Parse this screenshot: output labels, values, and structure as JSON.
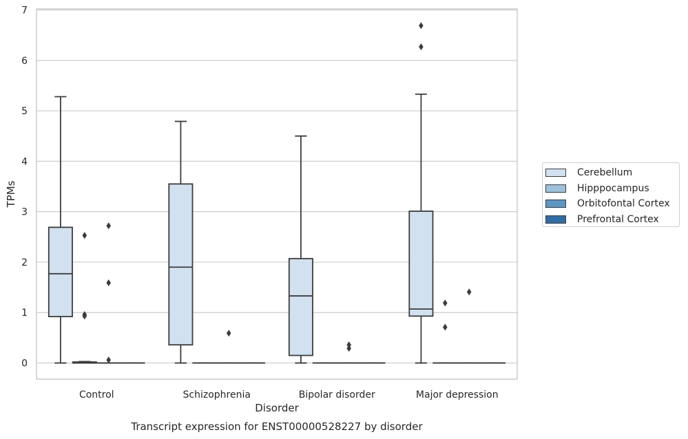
{
  "chart_data": {
    "type": "box",
    "xlabel": "Disorder",
    "ylabel": "TPMs",
    "ylim": [
      -0.32,
      7.02
    ],
    "yticks": [
      0,
      1,
      2,
      3,
      4,
      5,
      6,
      7
    ],
    "grid": true,
    "legend_position": "right",
    "categories": [
      "Control",
      "Schizophrenia",
      "Bipolar disorder",
      "Major depression"
    ],
    "series": [
      {
        "name": "Cerebellum",
        "color": "#d2e1f0",
        "boxes": [
          {
            "min": 0.0,
            "q1": 0.92,
            "median": 1.77,
            "q3": 2.69,
            "max": 5.28,
            "outliers": []
          },
          {
            "min": 0.0,
            "q1": 0.36,
            "median": 1.9,
            "q3": 3.55,
            "max": 4.79,
            "outliers": []
          },
          {
            "min": 0.0,
            "q1": 0.15,
            "median": 1.33,
            "q3": 2.07,
            "max": 4.5,
            "outliers": []
          },
          {
            "min": 0.0,
            "q1": 0.93,
            "median": 1.07,
            "q3": 3.01,
            "max": 5.33,
            "outliers": [
              6.27,
              6.69
            ]
          }
        ]
      },
      {
        "name": "Hipppocampus",
        "color": "#9cc2de",
        "boxes": [
          {
            "min": 0.0,
            "q1": 0.0,
            "median": 0.0,
            "q3": 0.02,
            "max": 0.03,
            "outliers": [
              0.93,
              0.96,
              2.53
            ]
          },
          {
            "min": 0.0,
            "q1": 0.0,
            "median": 0.0,
            "q3": 0.0,
            "max": 0.0,
            "outliers": []
          },
          {
            "min": 0.0,
            "q1": 0.0,
            "median": 0.0,
            "q3": 0.0,
            "max": 0.0,
            "outliers": []
          },
          {
            "min": 0.0,
            "q1": 0.0,
            "median": 0.0,
            "q3": 0.0,
            "max": 0.0,
            "outliers": [
              0.71,
              1.19
            ]
          }
        ]
      },
      {
        "name": "Orbitofontal Cortex",
        "color": "#5b97c4",
        "boxes": [
          {
            "min": 0.0,
            "q1": 0.0,
            "median": 0.0,
            "q3": 0.0,
            "max": 0.0,
            "outliers": [
              0.06,
              1.59,
              2.72
            ]
          },
          {
            "min": 0.0,
            "q1": 0.0,
            "median": 0.0,
            "q3": 0.0,
            "max": 0.0,
            "outliers": [
              0.59
            ]
          },
          {
            "min": 0.0,
            "q1": 0.0,
            "median": 0.0,
            "q3": 0.0,
            "max": 0.0,
            "outliers": [
              0.29,
              0.36
            ]
          },
          {
            "min": 0.0,
            "q1": 0.0,
            "median": 0.0,
            "q3": 0.0,
            "max": 0.0,
            "outliers": [
              1.41
            ]
          }
        ]
      },
      {
        "name": "Prefrontal Cortex",
        "color": "#2e6ea6",
        "boxes": [
          {
            "min": 0.0,
            "q1": 0.0,
            "median": 0.0,
            "q3": 0.0,
            "max": 0.0,
            "outliers": []
          },
          {
            "min": 0.0,
            "q1": 0.0,
            "median": 0.0,
            "q3": 0.0,
            "max": 0.0,
            "outliers": []
          },
          {
            "min": 0.0,
            "q1": 0.0,
            "median": 0.0,
            "q3": 0.0,
            "max": 0.0,
            "outliers": []
          },
          {
            "min": 0.0,
            "q1": 0.0,
            "median": 0.0,
            "q3": 0.0,
            "max": 0.0,
            "outliers": []
          }
        ]
      }
    ]
  },
  "caption": "Transcript expression for ENST00000528227 by disorder",
  "colors": {
    "grid": "#cccccc",
    "line": "#3c3c3c",
    "frame": "#cccccc"
  }
}
